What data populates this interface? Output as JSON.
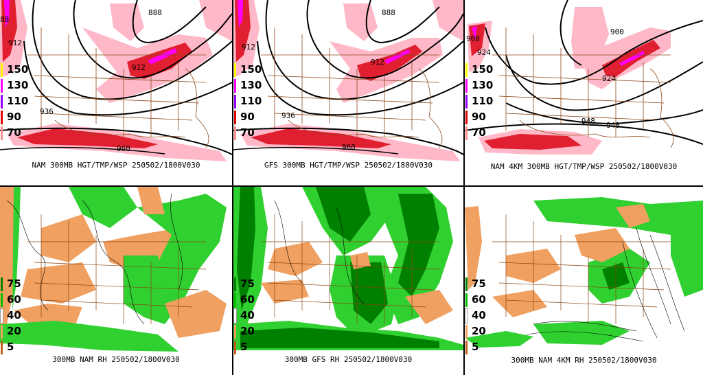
{
  "panels": [
    {
      "id": "nam-hgt",
      "caption": "NAM 300MB HGT/TMP/WSP 250502/1800V030",
      "legend": [
        "150",
        "130",
        "110",
        "90",
        "70"
      ],
      "legend_colors": [
        "#ffff00",
        "#ff00ff",
        "#9000ff",
        "#e00000",
        "#ff9090"
      ],
      "contour_labels": [
        "888",
        "912",
        "912",
        "936",
        "960",
        "88"
      ]
    },
    {
      "id": "gfs-hgt",
      "caption": "GFS 300MB HGT/TMP/WSP 250502/1800V030",
      "legend": [
        "150",
        "130",
        "110",
        "90",
        "70"
      ],
      "legend_colors": [
        "#ffff00",
        "#ff00ff",
        "#9000ff",
        "#e00000",
        "#ff9090"
      ],
      "contour_labels": [
        "888",
        "912",
        "912",
        "936",
        "960"
      ]
    },
    {
      "id": "nam4km-hgt",
      "caption": "NAM 4KM 300MB HGT/TMP/WSP 250502/1800V030",
      "legend": [
        "150",
        "130",
        "110",
        "90",
        "70"
      ],
      "legend_colors": [
        "#ffff00",
        "#ff00ff",
        "#9000ff",
        "#e00000",
        "#ff9090"
      ],
      "contour_labels": [
        "900",
        "924",
        "900",
        "924",
        "948",
        "948"
      ]
    },
    {
      "id": "nam-rh",
      "caption": "300MB NAM RH 250502/1800V030",
      "legend": [
        "75",
        "60",
        "40",
        "20",
        "5"
      ],
      "legend_colors": [
        "#008000",
        "#00c000",
        "#ffffff",
        "#f0a060",
        "#c06020"
      ]
    },
    {
      "id": "gfs-rh",
      "caption": "300MB GFS RH 250502/1800V030",
      "legend": [
        "75",
        "60",
        "40",
        "20",
        "5"
      ],
      "legend_colors": [
        "#008000",
        "#00c000",
        "#ffffff",
        "#f0a060",
        "#c06020"
      ]
    },
    {
      "id": "nam4km-rh",
      "caption": "300MB NAM 4KM RH 250502/1800V030",
      "legend": [
        "75",
        "60",
        "40",
        "20",
        "5"
      ],
      "legend_colors": [
        "#008000",
        "#00c000",
        "#ffffff",
        "#f0a060",
        "#c06020"
      ]
    }
  ],
  "colors": {
    "wind_light": "#ffb8c8",
    "wind_mid": "#f06070",
    "wind_strong": "#e02030",
    "wind_max": "#ff00ff",
    "rh_dark": "#008000",
    "rh_light": "#30d030",
    "rh_dry": "#f0a060",
    "borders": "#8b4513",
    "contour": "#000000"
  }
}
